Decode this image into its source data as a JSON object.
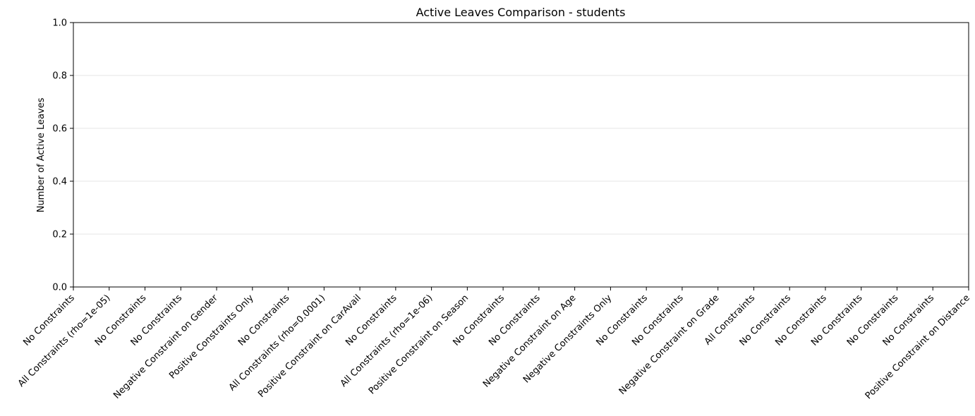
{
  "chart_data": {
    "type": "bar",
    "title": "Active Leaves Comparison - students",
    "xlabel": "",
    "ylabel": "Number of Active Leaves",
    "ylim": [
      0,
      1.0
    ],
    "yticks": [
      0.0,
      0.2,
      0.4,
      0.6,
      0.8,
      1.0
    ],
    "ytick_labels": [
      "0.0",
      "0.2",
      "0.4",
      "0.6",
      "0.8",
      "1.0"
    ],
    "grid": "y-axis only",
    "categories": [
      "No Constraints",
      "All Constraints (rho=1e-05)",
      "No Constraints",
      "No Constraints",
      "Negative Constraint on Gender",
      "Positive Constraints Only",
      "No Constraints",
      "All Constraints (rho=0.0001)",
      "Positive Constraint on CarAvail",
      "No Constraints",
      "All Constraints (rho=1e-06)",
      "Positive Constraint on Season",
      "No Constraints",
      "No Constraints",
      "Negative Constraint on Age",
      "Negative Constraints Only",
      "No Constraints",
      "No Constraints",
      "Negative Constraint on Grade",
      "All Constraints",
      "No Constraints",
      "No Constraints",
      "No Constraints",
      "No Constraints",
      "No Constraints",
      "Positive Constraint on Distance"
    ],
    "values": [
      0,
      0,
      0,
      0,
      0,
      0,
      0,
      0,
      0,
      0,
      0,
      0,
      0,
      0,
      0,
      0,
      0,
      0,
      0,
      0,
      0,
      0,
      0,
      0,
      0,
      0
    ]
  }
}
